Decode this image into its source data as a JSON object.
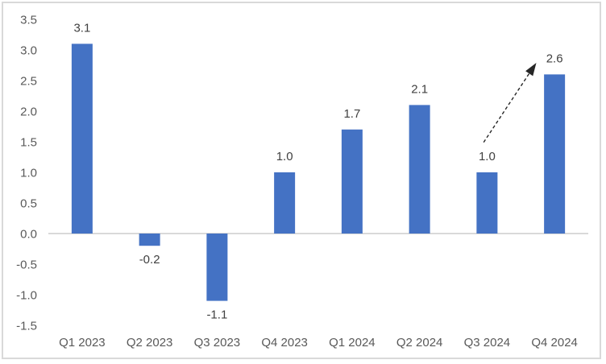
{
  "chart_data": {
    "type": "bar",
    "title": "",
    "xlabel": "",
    "ylabel": "",
    "categories": [
      "Q1 2023",
      "Q2 2023",
      "Q3 2023",
      "Q4 2023",
      "Q1 2024",
      "Q2 2024",
      "Q3 2024",
      "Q4 2024"
    ],
    "values": [
      3.1,
      -0.2,
      -1.1,
      1.0,
      1.7,
      2.1,
      1.0,
      2.6
    ],
    "data_labels": [
      "3.1",
      "-0.2",
      "-1.1",
      "1.0",
      "1.7",
      "2.1",
      "1.0",
      "2.6"
    ],
    "ylim": [
      -1.5,
      3.5
    ],
    "ytick_step": 0.5,
    "ytick_labels": [
      "3.5",
      "3.0",
      "2.5",
      "2.0",
      "1.5",
      "1.0",
      "0.5",
      "0.0",
      "-0.5",
      "-1.0",
      "-1.5"
    ],
    "grid": false,
    "legend": null,
    "bar_color": "#4472c4",
    "zero_line_color": "#d9d9d9",
    "tick_label_color": "#595959",
    "data_label_color": "#404040",
    "frame_border_color": "#d9d9d9",
    "annotation": {
      "type": "dashed-arrow",
      "color": "#262626",
      "from": {
        "category_index": 5.95,
        "value": 1.49
      },
      "to": {
        "category_index": 6.73,
        "value": 2.79
      }
    }
  }
}
